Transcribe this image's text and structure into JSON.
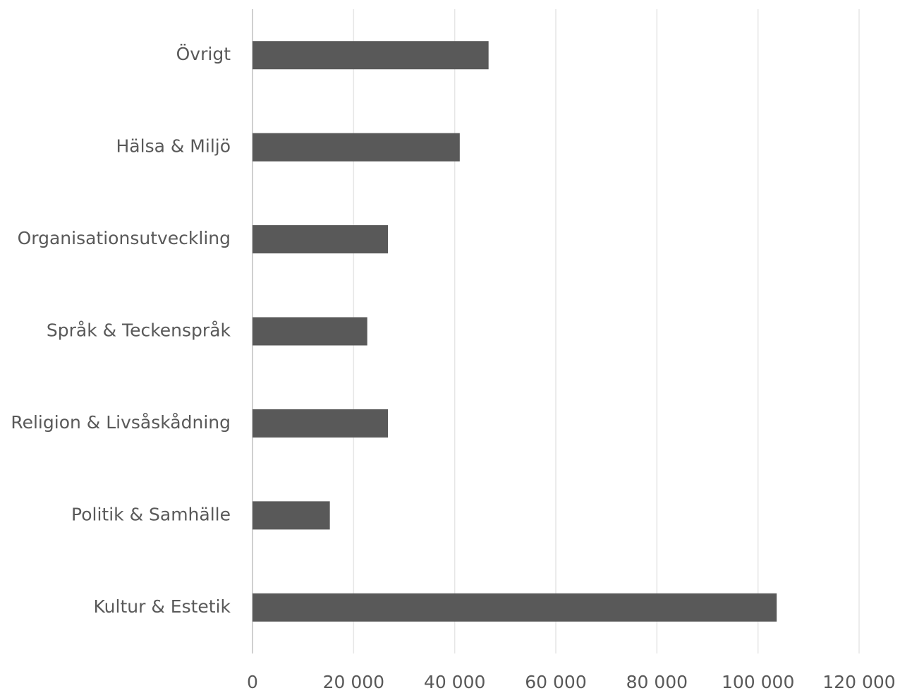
{
  "chart_data": {
    "type": "bar",
    "orientation": "horizontal",
    "categories": [
      "Övrigt",
      "Hälsa & Miljö",
      "Organisationsutveckling",
      "Språk & Teckenspråk",
      "Religion & Livsåskådning",
      "Politik & Samhälle",
      "Kultur & Estetik"
    ],
    "values": [
      46700,
      41000,
      26800,
      22700,
      26800,
      15300,
      103700
    ],
    "color": "#595959",
    "xlim": [
      0,
      120000
    ],
    "xticks": [
      0,
      {
        "value": 20000,
        "label": "20 000"
      },
      {
        "value": 40000,
        "label": "40 000"
      },
      {
        "value": 60000,
        "label": "60 000"
      },
      {
        "value": 80000,
        "label": "80 000"
      },
      {
        "value": 100000,
        "label": "100 000"
      },
      {
        "value": 120000,
        "label": "120 000"
      }
    ],
    "grid": true
  }
}
